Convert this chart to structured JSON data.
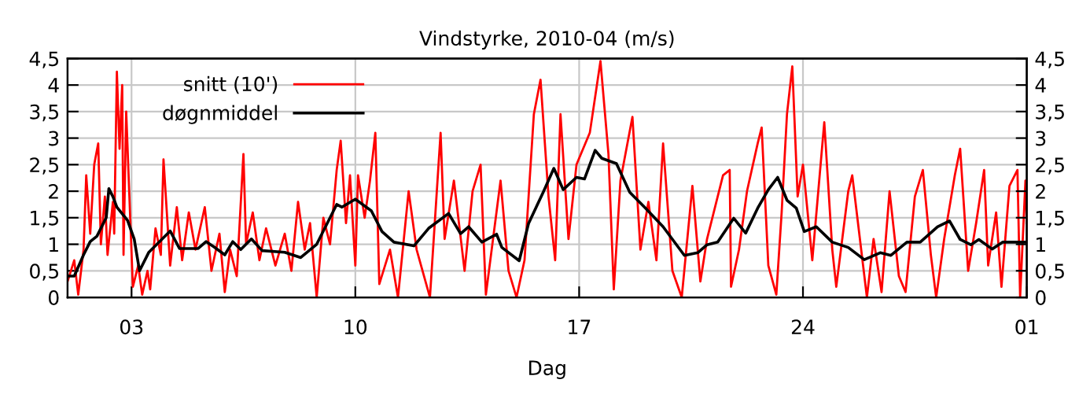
{
  "chart_data": {
    "type": "line",
    "title": "Vindstyrke, 2010-04 (m/s)",
    "xlabel": "Dag",
    "xlim": [
      "2010-04-01T00:00",
      "2010-05-01T00:00"
    ],
    "xticks": [
      {
        "value": "2010-04-03",
        "label": "03"
      },
      {
        "value": "2010-04-10",
        "label": "10"
      },
      {
        "value": "2010-04-17",
        "label": "17"
      },
      {
        "value": "2010-04-24",
        "label": "24"
      },
      {
        "value": "2010-05-01",
        "label": "01"
      }
    ],
    "ylim": [
      0,
      4.5
    ],
    "yticks": [
      {
        "value": 0,
        "label": "0"
      },
      {
        "value": 0.5,
        "label": "0,5"
      },
      {
        "value": 1,
        "label": "1"
      },
      {
        "value": 1.5,
        "label": "1,5"
      },
      {
        "value": 2,
        "label": "2"
      },
      {
        "value": 2.5,
        "label": "2,5"
      },
      {
        "value": 3,
        "label": "3"
      },
      {
        "value": 3.5,
        "label": "3,5"
      },
      {
        "value": 4,
        "label": "4"
      },
      {
        "value": 4.5,
        "label": "4,5"
      }
    ],
    "y2lim": [
      0,
      4.5
    ],
    "y2ticks": [
      {
        "value": 0,
        "label": "0"
      },
      {
        "value": 0.5,
        "label": "0,5"
      },
      {
        "value": 1,
        "label": "1"
      },
      {
        "value": 1.5,
        "label": "1,5"
      },
      {
        "value": 2,
        "label": "2"
      },
      {
        "value": 2.5,
        "label": "2,5"
      },
      {
        "value": 3,
        "label": "3"
      },
      {
        "value": 3.5,
        "label": "3,5"
      },
      {
        "value": 4,
        "label": "4"
      },
      {
        "value": 4.5,
        "label": "4,5"
      }
    ],
    "grid": true,
    "legend": "top left",
    "marker": "none",
    "line_style": "solid",
    "series": [
      {
        "name": "snitt (10')",
        "color": "#ff0000",
        "x": [
          "2010-04-01T00:00",
          "2010-04-01T05:00",
          "2010-04-01T08:00",
          "2010-04-01T12:00",
          "2010-04-01T14:00",
          "2010-04-01T17:00",
          "2010-04-01T20:00",
          "2010-04-01T23:00",
          "2010-04-02T01:00",
          "2010-04-02T04:00",
          "2010-04-02T06:00",
          "2010-04-02T10:00",
          "2010-04-02T11:00",
          "2010-04-02T13:00",
          "2010-04-02T15:00",
          "2010-04-02T17:00",
          "2010-04-02T18:00",
          "2010-04-02T20:00",
          "2010-04-02T23:00",
          "2010-04-03T01:00",
          "2010-04-03T05:00",
          "2010-04-03T08:00",
          "2010-04-03T12:00",
          "2010-04-03T14:00",
          "2010-04-03T18:00",
          "2010-04-03T22:00",
          "2010-04-04T00:00",
          "2010-04-04T05:00",
          "2010-04-04T10:00",
          "2010-04-04T14:00",
          "2010-04-04T19:00",
          "2010-04-05T00:00",
          "2010-04-05T07:00",
          "2010-04-05T12:00",
          "2010-04-05T18:00",
          "2010-04-05T22:00",
          "2010-04-06T02:00",
          "2010-04-06T07:00",
          "2010-04-06T12:00",
          "2010-04-06T14:00",
          "2010-04-06T19:00",
          "2010-04-07T00:00",
          "2010-04-07T05:00",
          "2010-04-07T12:00",
          "2010-04-07T19:00",
          "2010-04-08T00:00",
          "2010-04-08T05:00",
          "2010-04-08T10:00",
          "2010-04-08T14:00",
          "2010-04-08T19:00",
          "2010-04-09T00:00",
          "2010-04-09T05:00",
          "2010-04-09T10:00",
          "2010-04-09T13:00",
          "2010-04-09T17:00",
          "2010-04-09T20:00",
          "2010-04-10T00:00",
          "2010-04-10T02:00",
          "2010-04-10T07:00",
          "2010-04-10T11:00",
          "2010-04-10T15:00",
          "2010-04-10T18:00",
          "2010-04-11T02:00",
          "2010-04-11T08:00",
          "2010-04-11T16:00",
          "2010-04-11T22:00",
          "2010-04-12T08:00",
          "2010-04-12T16:00",
          "2010-04-12T19:00",
          "2010-04-13T02:00",
          "2010-04-13T10:00",
          "2010-04-13T16:00",
          "2010-04-13T22:00",
          "2010-04-14T02:00",
          "2010-04-14T13:00",
          "2010-04-14T19:00",
          "2010-04-15T01:00",
          "2010-04-15T07:00",
          "2010-04-15T14:00",
          "2010-04-15T19:00",
          "2010-04-16T01:00",
          "2010-04-16T06:00",
          "2010-04-16T10:00",
          "2010-04-16T16:00",
          "2010-04-16T22:00",
          "2010-04-17T08:00",
          "2010-04-17T16:00",
          "2010-04-17T22:00",
          "2010-04-18T02:00",
          "2010-04-18T07:00",
          "2010-04-18T16:00",
          "2010-04-18T22:00",
          "2010-04-19T04:00",
          "2010-04-19T10:00",
          "2010-04-19T15:00",
          "2010-04-19T22:00",
          "2010-04-20T05:00",
          "2010-04-20T13:00",
          "2010-04-20T19:00",
          "2010-04-21T00:00",
          "2010-04-21T12:00",
          "2010-04-21T17:00",
          "2010-04-21T18:00",
          "2010-04-22T00:00",
          "2010-04-22T06:00",
          "2010-04-22T14:00",
          "2010-04-22T17:00",
          "2010-04-22T22:00",
          "2010-04-23T04:00",
          "2010-04-23T08:00",
          "2010-04-23T12:00",
          "2010-04-23T16:00",
          "2010-04-23T20:00",
          "2010-04-24T00:00",
          "2010-04-24T07:00",
          "2010-04-24T16:00",
          "2010-04-24T22:00",
          "2010-04-25T01:00",
          "2010-04-25T10:00",
          "2010-04-25T13:00",
          "2010-04-26T00:00",
          "2010-04-26T05:00",
          "2010-04-26T11:00",
          "2010-04-26T17:00",
          "2010-04-27T00:00",
          "2010-04-27T05:00",
          "2010-04-27T12:00",
          "2010-04-27T18:00",
          "2010-04-28T00:00",
          "2010-04-28T04:00",
          "2010-04-28T10:00",
          "2010-04-28T18:00",
          "2010-04-28T22:00",
          "2010-04-29T04:00",
          "2010-04-29T10:00",
          "2010-04-29T16:00",
          "2010-04-29T19:00",
          "2010-04-30T01:00",
          "2010-04-30T05:00",
          "2010-04-30T11:00",
          "2010-04-30T17:00",
          "2010-04-30T19:00",
          "2010-04-30T23:00",
          "2010-05-01T00:00"
        ],
        "values": [
          0.3,
          0.7,
          0.05,
          0.9,
          2.3,
          1.2,
          2.5,
          2.9,
          1.0,
          1.9,
          0.8,
          1.8,
          1.2,
          4.25,
          2.8,
          4.0,
          0.8,
          3.5,
          1.5,
          0.2,
          0.6,
          0.05,
          0.5,
          0.15,
          1.3,
          0.8,
          2.6,
          0.6,
          1.7,
          0.7,
          1.6,
          0.9,
          1.7,
          0.5,
          1.2,
          0.1,
          0.9,
          0.4,
          2.7,
          1.0,
          1.6,
          0.7,
          1.3,
          0.6,
          1.2,
          0.5,
          1.8,
          0.9,
          1.4,
          0.0,
          1.5,
          1.0,
          2.4,
          2.95,
          1.4,
          2.3,
          0.6,
          2.3,
          1.5,
          2.2,
          3.1,
          0.25,
          0.9,
          0.0,
          2.0,
          0.9,
          0.0,
          3.1,
          1.1,
          2.2,
          0.5,
          2.0,
          2.5,
          0.05,
          2.2,
          0.5,
          0.0,
          0.7,
          3.45,
          4.1,
          1.9,
          0.7,
          3.45,
          1.1,
          2.5,
          3.1,
          4.45,
          2.7,
          0.15,
          2.2,
          3.4,
          0.9,
          1.8,
          0.7,
          2.9,
          0.5,
          0.0,
          2.1,
          0.3,
          1.1,
          2.3,
          2.4,
          0.2,
          0.9,
          2.0,
          2.9,
          3.2,
          0.6,
          0.05,
          1.6,
          3.45,
          4.35,
          1.9,
          2.5,
          0.7,
          3.3,
          0.9,
          0.2,
          2.0,
          2.3,
          0.0,
          1.1,
          0.1,
          2.0,
          0.4,
          0.1,
          1.9,
          2.4,
          0.8,
          0.0,
          1.1,
          2.3,
          2.8,
          0.5,
          1.4,
          2.4,
          0.6,
          1.6,
          0.2,
          2.1,
          2.4,
          0.0,
          2.2,
          1.4
        ]
      },
      {
        "name": "døgnmiddel",
        "color": "#000000",
        "x": [
          "2010-04-01T00:00",
          "2010-04-01T05:00",
          "2010-04-01T12:00",
          "2010-04-01T17:00",
          "2010-04-01T22:00",
          "2010-04-02T05:00",
          "2010-04-02T07:00",
          "2010-04-02T10:00",
          "2010-04-02T13:00",
          "2010-04-02T21:00",
          "2010-04-03T02:00",
          "2010-04-03T06:00",
          "2010-04-03T13:00",
          "2010-04-03T21:00",
          "2010-04-04T05:00",
          "2010-04-04T12:00",
          "2010-04-05T02:00",
          "2010-04-05T08:00",
          "2010-04-05T14:00",
          "2010-04-05T22:00",
          "2010-04-06T04:00",
          "2010-04-06T10:00",
          "2010-04-06T18:00",
          "2010-04-07T02:00",
          "2010-04-07T19:00",
          "2010-04-08T07:00",
          "2010-04-08T19:00",
          "2010-04-09T10:00",
          "2010-04-09T14:00",
          "2010-04-10T00:00",
          "2010-04-10T12:00",
          "2010-04-10T20:00",
          "2010-04-11T05:00",
          "2010-04-11T20:00",
          "2010-04-12T07:00",
          "2010-04-12T22:00",
          "2010-04-13T07:00",
          "2010-04-13T13:00",
          "2010-04-13T23:00",
          "2010-04-14T10:00",
          "2010-04-14T14:00",
          "2010-04-15T03:00",
          "2010-04-15T10:00",
          "2010-04-15T21:00",
          "2010-04-16T05:00",
          "2010-04-16T12:00",
          "2010-04-16T22:00",
          "2010-04-17T04:00",
          "2010-04-17T12:00",
          "2010-04-17T17:00",
          "2010-04-18T04:00",
          "2010-04-18T14:00",
          "2010-04-19T01:00",
          "2010-04-19T15:00",
          "2010-04-20T07:00",
          "2010-04-20T17:00",
          "2010-04-21T00:00",
          "2010-04-21T08:00",
          "2010-04-21T20:00",
          "2010-04-22T05:00",
          "2010-04-22T14:00",
          "2010-04-22T22:00",
          "2010-04-23T05:00",
          "2010-04-23T12:00",
          "2010-04-23T19:00",
          "2010-04-24T01:00",
          "2010-04-24T10:00",
          "2010-04-24T22:00",
          "2010-04-25T10:00",
          "2010-04-25T22:00",
          "2010-04-26T10:00",
          "2010-04-26T18:00",
          "2010-04-27T06:00",
          "2010-04-27T16:00",
          "2010-04-28T05:00",
          "2010-04-28T14:00",
          "2010-04-28T22:00",
          "2010-04-29T06:00",
          "2010-04-29T12:00",
          "2010-04-29T22:00",
          "2010-04-30T06:00",
          "2010-04-30T12:00",
          "2010-04-30T22:00",
          "2010-05-01T00:00"
        ],
        "values": [
          0.4,
          0.4,
          0.8,
          1.05,
          1.15,
          1.5,
          2.05,
          1.9,
          1.7,
          1.45,
          1.1,
          0.5,
          0.85,
          1.05,
          1.25,
          0.92,
          0.92,
          1.05,
          0.95,
          0.8,
          1.05,
          0.9,
          1.1,
          0.88,
          0.85,
          0.75,
          1.0,
          1.75,
          1.7,
          1.85,
          1.63,
          1.24,
          1.04,
          0.97,
          1.3,
          1.58,
          1.2,
          1.33,
          1.04,
          1.19,
          0.94,
          0.69,
          1.39,
          1.98,
          2.43,
          2.03,
          2.26,
          2.23,
          2.77,
          2.62,
          2.52,
          1.98,
          1.7,
          1.33,
          0.79,
          0.84,
          0.99,
          1.04,
          1.49,
          1.21,
          1.68,
          2.03,
          2.26,
          1.83,
          1.68,
          1.24,
          1.33,
          1.04,
          0.94,
          0.71,
          0.84,
          0.79,
          1.04,
          1.04,
          1.33,
          1.44,
          1.09,
          0.99,
          1.09,
          0.91,
          1.04,
          1.04,
          1.04,
          1.04
        ]
      }
    ]
  }
}
